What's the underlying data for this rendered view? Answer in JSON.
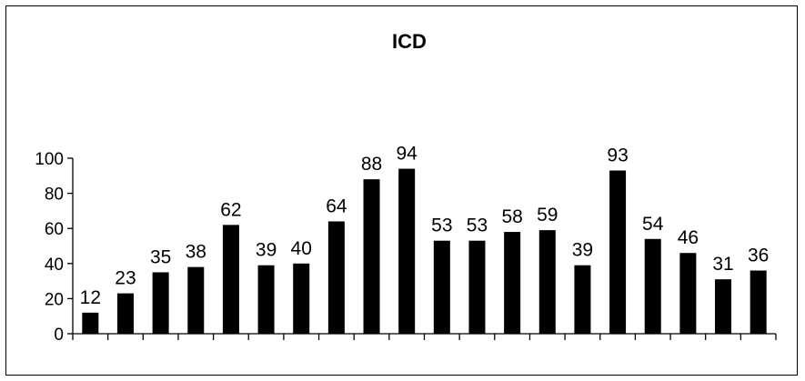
{
  "chart_data": {
    "type": "bar",
    "title": "ICD",
    "xlabel": "",
    "ylabel": "",
    "categories": [
      "",
      "",
      "",
      "",
      "",
      "",
      "",
      "",
      "",
      "",
      "",
      "",
      "",
      "",
      "",
      "",
      "",
      "",
      "",
      ""
    ],
    "values": [
      12,
      23,
      35,
      38,
      62,
      39,
      40,
      64,
      88,
      94,
      53,
      53,
      58,
      59,
      39,
      93,
      54,
      46,
      31,
      36
    ],
    "data_labels": [
      "12",
      "23",
      "35",
      "38",
      "62",
      "39",
      "40",
      "64",
      "88",
      "94",
      "53",
      "53",
      "58",
      "59",
      "39",
      "93",
      "54",
      "46",
      "31",
      "36"
    ],
    "ylim": [
      0,
      100
    ],
    "yticks": [
      "0",
      "20",
      "40",
      "60",
      "80",
      "100"
    ],
    "grid": false,
    "legend": "none",
    "bar_color": "#000000"
  }
}
